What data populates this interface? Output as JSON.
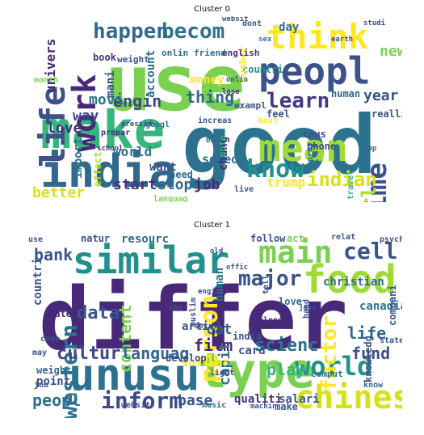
{
  "clusters": [
    {
      "title": "Cluster 0",
      "words": [
        {
          "text": "use",
          "color": "#7ad151"
        },
        {
          "text": "good",
          "color": "#2c728e"
        },
        {
          "text": "make",
          "color": "#35b779"
        },
        {
          "text": "india",
          "color": "#31688e"
        },
        {
          "text": "peopl",
          "color": "#3b528b"
        },
        {
          "text": "think",
          "color": "#fde725"
        },
        {
          "text": "mean",
          "color": "#a0da39"
        },
        {
          "text": "life",
          "color": "#3b528b"
        },
        {
          "text": "work",
          "color": "#482878"
        },
        {
          "text": "know",
          "color": "#21918c"
        },
        {
          "text": "learn",
          "color": "#443983"
        },
        {
          "text": "time",
          "color": "#3b528b"
        },
        {
          "text": "happen",
          "color": "#31688e"
        },
        {
          "text": "becom",
          "color": "#2c728e"
        },
        {
          "text": "engin",
          "color": "#3e4989"
        },
        {
          "text": "thing",
          "color": "#31688e"
        },
        {
          "text": "indian",
          "color": "#d5e21a"
        },
        {
          "text": "girl",
          "color": "#b5de2b"
        },
        {
          "text": "movi",
          "color": "#2c728e"
        },
        {
          "text": "start",
          "color": "#46327e"
        },
        {
          "text": "stop",
          "color": "#31688e"
        },
        {
          "text": "job",
          "color": "#482878"
        },
        {
          "text": "trump",
          "color": "#fde725"
        },
        {
          "text": "world",
          "color": "#2c728e"
        },
        {
          "text": "someon",
          "color": "#2c728e"
        },
        {
          "text": "better",
          "color": "#d5e21a"
        },
        {
          "text": "univers",
          "color": "#482878"
        },
        {
          "text": "day",
          "color": "#31688e"
        },
        {
          "text": "new",
          "color": "#7ad151"
        },
        {
          "text": "year",
          "color": "#3b528b"
        },
        {
          "text": "money",
          "color": "#fde725"
        },
        {
          "text": "love",
          "color": "#46327e"
        },
        {
          "text": "way",
          "color": "#3e4989"
        },
        {
          "text": "account",
          "color": "#2c728e"
        },
        {
          "text": "want",
          "color": "#3b528b"
        },
        {
          "text": "chang",
          "color": "#482878"
        },
        {
          "text": "mani",
          "color": "#3b528b"
        },
        {
          "text": "countri",
          "color": "#21918c"
        },
        {
          "text": "need",
          "color": "#31688e"
        },
        {
          "text": "human",
          "color": "#31688e"
        },
        {
          "text": "feel",
          "color": "#3b528b"
        },
        {
          "text": "import",
          "color": "#2c728e"
        },
        {
          "text": "effect",
          "color": "#b5de2b"
        },
        {
          "text": "number",
          "color": "#fde725"
        },
        {
          "text": "phone",
          "color": "#3b528b"
        },
        {
          "text": "caus",
          "color": "#3b528b"
        },
        {
          "text": "book",
          "color": "#46327e"
        },
        {
          "text": "english",
          "color": "#482878"
        },
        {
          "text": "friend",
          "color": "#2c728e"
        },
        {
          "text": "onlin",
          "color": "#31688e"
        },
        {
          "text": "weight",
          "color": "#3b528b"
        },
        {
          "text": "exampl",
          "color": "#3b528b"
        },
        {
          "text": "note",
          "color": "#35b779"
        },
        {
          "text": "realli",
          "color": "#3b528b"
        },
        {
          "text": "compani",
          "color": "#35b779"
        },
        {
          "text": "month",
          "color": "#7ad151"
        },
        {
          "text": "dont",
          "color": "#3b528b"
        },
        {
          "text": "best",
          "color": "#fde725"
        },
        {
          "text": "prepar",
          "color": "#46327e"
        },
        {
          "text": "increas",
          "color": "#3b528b"
        },
        {
          "text": "improv",
          "color": "#2c728e"
        },
        {
          "text": "live",
          "color": "#3b528b"
        },
        {
          "text": "travel",
          "color": "#35b779"
        },
        {
          "text": "languag",
          "color": "#7ad151"
        },
        {
          "text": "googl",
          "color": "#31688e"
        },
        {
          "text": "pressid",
          "color": "#3b528b"
        },
        {
          "text": "school",
          "color": "#46327e"
        },
        {
          "text": "websit",
          "color": "#3b528b"
        },
        {
          "text": "sex",
          "color": "#2c728e"
        },
        {
          "text": "lose",
          "color": "#482878"
        },
        {
          "text": "earth",
          "color": "#3b528b"
        },
        {
          "text": "studi",
          "color": "#3e4989"
        },
        {
          "text": "onlin",
          "color": "#3b528b"
        },
        {
          "text": "app",
          "color": "#31688e"
        },
        {
          "text": "buy",
          "color": "#2c728e"
        }
      ]
    },
    {
      "title": "Cluster 1",
      "words": [
        {
          "text": "differ",
          "color": "#482878"
        },
        {
          "text": "similar",
          "color": "#21918c"
        },
        {
          "text": "unusu",
          "color": "#2c728e"
        },
        {
          "text": "type",
          "color": "#7ad151"
        },
        {
          "text": "food",
          "color": "#a0da39"
        },
        {
          "text": "chines",
          "color": "#d5e21a"
        },
        {
          "text": "main",
          "color": "#7ad151"
        },
        {
          "text": "cell",
          "color": "#3b528b"
        },
        {
          "text": "major",
          "color": "#3b528b"
        },
        {
          "text": "western",
          "color": "#2c728e"
        },
        {
          "text": "person",
          "color": "#fde725"
        },
        {
          "text": "world",
          "color": "#21918c"
        },
        {
          "text": "inform",
          "color": "#3e4989"
        },
        {
          "text": "factor",
          "color": "#fde725"
        },
        {
          "text": "content",
          "color": "#7ad151"
        },
        {
          "text": "data",
          "color": "#3b528b"
        },
        {
          "text": "cultur",
          "color": "#3e4989"
        },
        {
          "text": "languag",
          "color": "#31688e"
        },
        {
          "text": "scienc",
          "color": "#2c728e"
        },
        {
          "text": "film",
          "color": "#482878"
        },
        {
          "text": "cat",
          "color": "#31688e"
        },
        {
          "text": "capit",
          "color": "#2c728e"
        },
        {
          "text": "life",
          "color": "#31688e"
        },
        {
          "text": "fund",
          "color": "#3b528b"
        },
        {
          "text": "play",
          "color": "#35b779"
        },
        {
          "text": "peopl",
          "color": "#2c728e"
        },
        {
          "text": "base",
          "color": "#3b528b"
        },
        {
          "text": "bank",
          "color": "#3b528b"
        },
        {
          "text": "christian",
          "color": "#31688e"
        },
        {
          "text": "canadian",
          "color": "#2c728e"
        },
        {
          "text": "card",
          "color": "#3b528b"
        },
        {
          "text": "softwar",
          "color": "#fde725"
        },
        {
          "text": "point",
          "color": "#3b528b"
        },
        {
          "text": "weight",
          "color": "#31688e"
        },
        {
          "text": "water",
          "color": "#482878"
        },
        {
          "text": "countri",
          "color": "#3b528b"
        },
        {
          "text": "resourc",
          "color": "#31688e"
        },
        {
          "text": "natur",
          "color": "#3b528b"
        },
        {
          "text": "human",
          "color": "#2c728e"
        },
        {
          "text": "follow",
          "color": "#3b528b"
        },
        {
          "text": "act",
          "color": "#7ad151"
        },
        {
          "text": "articl",
          "color": "#3b528b"
        },
        {
          "text": "develop",
          "color": "#3e4989"
        },
        {
          "text": "qualiti",
          "color": "#46327e"
        },
        {
          "text": "salari",
          "color": "#3b528b"
        },
        {
          "text": "knowledg",
          "color": "#3b528b"
        },
        {
          "text": "compani",
          "color": "#3b528b"
        },
        {
          "text": "india",
          "color": "#3b528b"
        },
        {
          "text": "love",
          "color": "#31688e"
        },
        {
          "text": "hand",
          "color": "#3b528b"
        },
        {
          "text": "comput",
          "color": "#2c728e"
        },
        {
          "text": "make",
          "color": "#3b528b"
        },
        {
          "text": "music",
          "color": "#2c728e"
        },
        {
          "text": "know",
          "color": "#31688e"
        },
        {
          "text": "relat",
          "color": "#3b528b"
        },
        {
          "text": "psycholog",
          "color": "#3b528b"
        },
        {
          "text": "blood",
          "color": "#482878"
        },
        {
          "text": "muslim",
          "color": "#3b528b"
        },
        {
          "text": "secur",
          "color": "#3e4989"
        },
        {
          "text": "code",
          "color": "#3b528b"
        },
        {
          "text": "state",
          "color": "#3b528b"
        },
        {
          "text": "may",
          "color": "#3b528b"
        },
        {
          "text": "light",
          "color": "#3b528b"
        },
        {
          "text": "use",
          "color": "#3b528b"
        },
        {
          "text": "job",
          "color": "#3b528b"
        },
        {
          "text": "websit",
          "color": "#3b528b"
        },
        {
          "text": "tell",
          "color": "#3b528b"
        },
        {
          "text": "java",
          "color": "#3b528b"
        },
        {
          "text": "mba",
          "color": "#3b528b"
        },
        {
          "text": "offic",
          "color": "#3b528b"
        },
        {
          "text": "machin",
          "color": "#3b528b"
        },
        {
          "text": "engin",
          "color": "#3b528b"
        },
        {
          "text": "old",
          "color": "#3b528b"
        }
      ]
    }
  ]
}
